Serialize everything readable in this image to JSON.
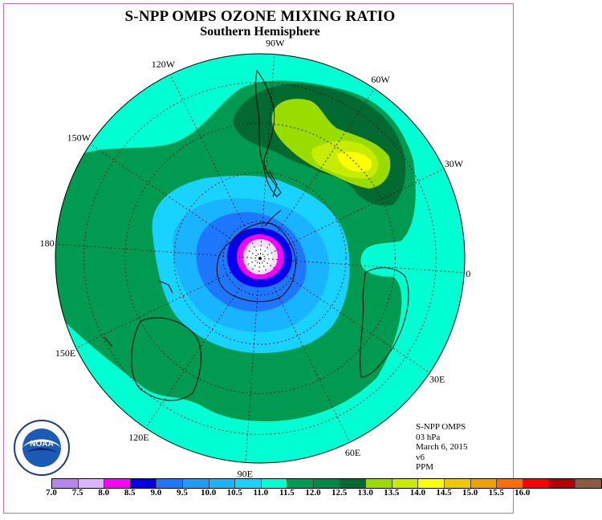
{
  "title": "S-NPP OMPS OZONE MIXING RATIO",
  "subtitle": "Southern Hemisphere",
  "longitude_labels": [
    {
      "text": "90W",
      "lon": -90
    },
    {
      "text": "60W",
      "lon": -60
    },
    {
      "text": "30W",
      "lon": -30
    },
    {
      "text": "0",
      "lon": 0
    },
    {
      "text": "30E",
      "lon": 30
    },
    {
      "text": "60E",
      "lon": 60
    },
    {
      "text": "90E",
      "lon": 90
    },
    {
      "text": "120E",
      "lon": 120
    },
    {
      "text": "150E",
      "lon": 150
    },
    {
      "text": "180",
      "lon": 180
    },
    {
      "text": "150W",
      "lon": -150
    },
    {
      "text": "120W",
      "lon": -120
    }
  ],
  "info": {
    "instrument": "S-NPP OMPS",
    "level": "03 hPa",
    "date": "March 6, 2015",
    "version": "v6",
    "units": "PPM"
  },
  "colorbar": {
    "colors": [
      "#b784f0",
      "#d8b4f8",
      "#ff00ff",
      "#0000ee",
      "#1e78ff",
      "#1e9bff",
      "#18b4ff",
      "#18d2ff",
      "#00ffd2",
      "#009a50",
      "#008844",
      "#006a30",
      "#9bdc00",
      "#c8ec00",
      "#ffff00",
      "#f0c800",
      "#f0a000",
      "#ff6e00",
      "#ff0000",
      "#b40000",
      "#8c5a3c"
    ],
    "ticks": [
      "7.0",
      "7.5",
      "8.0",
      "8.5",
      "9.0",
      "9.5",
      "10.0",
      "10.5",
      "11.0",
      "11.5",
      "12.0",
      "12.5",
      "13.0",
      "13.5",
      "14.0",
      "14.5",
      "15.0",
      "15.5",
      "16.0"
    ]
  },
  "logo_text": "NOAA",
  "colors": {
    "ocean_aqua": "#00ffd2",
    "green": "#009a50",
    "dark_green": "#006a30",
    "lime": "#9bdc00",
    "yellow_green": "#c8ec00",
    "yellow": "#ffff00",
    "light_blue": "#18d2ff",
    "sky_blue": "#18b4ff",
    "blue": "#1e78ff",
    "navy": "#0000ee",
    "magenta": "#ff00ff",
    "lavender": "#d8b4f8"
  }
}
